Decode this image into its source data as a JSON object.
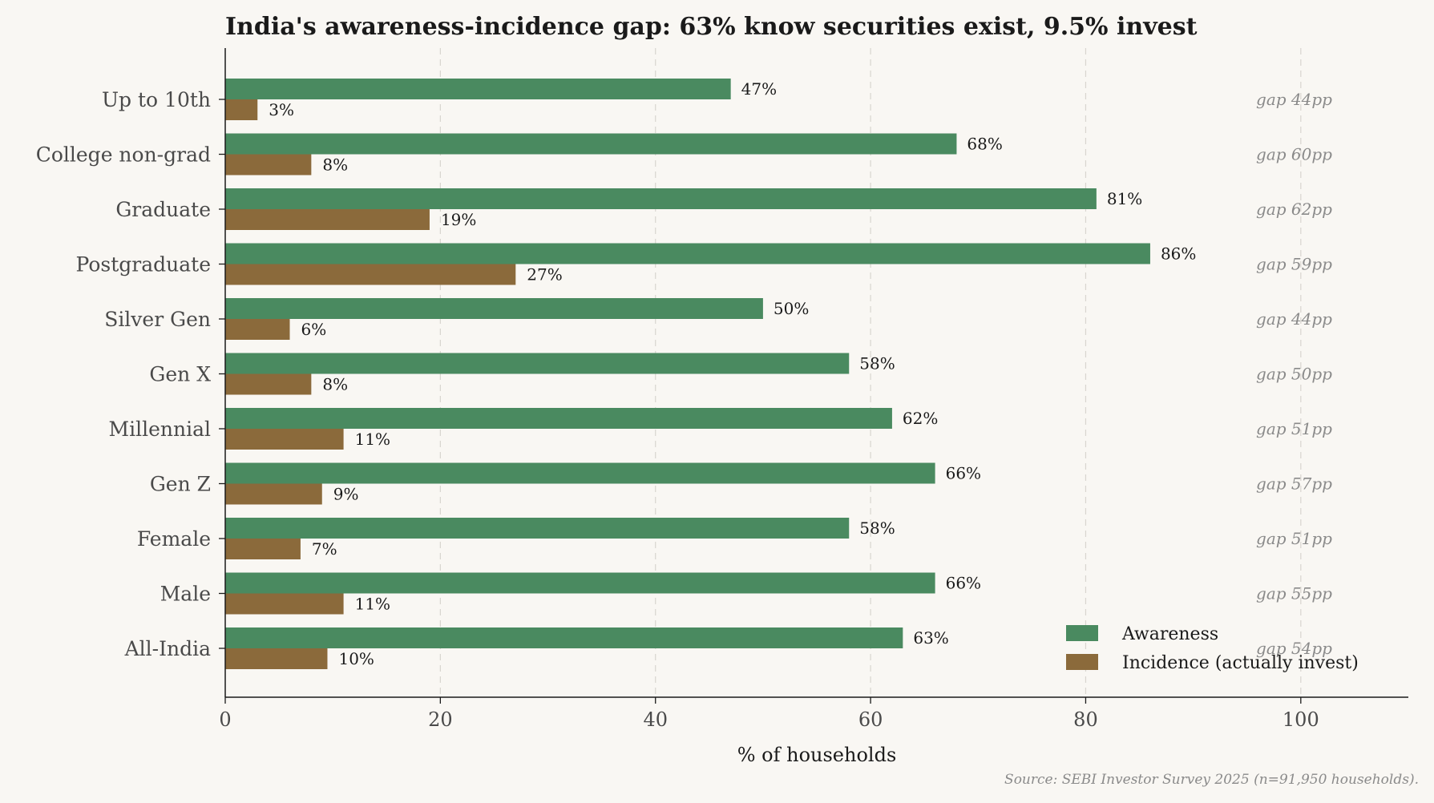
{
  "chart_data": {
    "type": "bar",
    "orientation": "horizontal",
    "title": "India's awareness-incidence gap: 63% know securities exist, 9.5% invest",
    "xlabel": "% of households",
    "ylabel": "",
    "xlim": [
      0,
      110
    ],
    "xticks": [
      0,
      20,
      40,
      60,
      80,
      100
    ],
    "grid": "vertical dashed",
    "legend_position": "bottom-right",
    "categories": [
      "Up to 10th",
      "College non-grad",
      "Graduate",
      "Postgraduate",
      "Silver Gen",
      "Gen X",
      "Millennial",
      "Gen Z",
      "Female",
      "Male",
      "All-India"
    ],
    "series": [
      {
        "name": "Awareness",
        "color": "#4a8a60",
        "values": [
          47,
          68,
          81,
          86,
          50,
          58,
          62,
          66,
          58,
          66,
          63
        ]
      },
      {
        "name": "Incidence (actually invest)",
        "color": "#8b6a3b",
        "values": [
          3,
          8,
          19,
          27,
          6,
          8,
          11,
          9,
          7,
          11,
          9.5
        ]
      }
    ],
    "value_labels": {
      "awareness": [
        "47%",
        "68%",
        "81%",
        "86%",
        "50%",
        "58%",
        "62%",
        "66%",
        "58%",
        "66%",
        "63%"
      ],
      "incidence": [
        "3%",
        "8%",
        "19%",
        "27%",
        "6%",
        "8%",
        "11%",
        "9%",
        "7%",
        "11%",
        "10%"
      ]
    },
    "gap_labels": [
      "gap 44pp",
      "gap 60pp",
      "gap 62pp",
      "gap 59pp",
      "gap 44pp",
      "gap 50pp",
      "gap 51pp",
      "gap 57pp",
      "gap 51pp",
      "gap 55pp",
      "gap 54pp"
    ],
    "source": "Source: SEBI Investor Survey 2025 (n=91,950 households)."
  }
}
